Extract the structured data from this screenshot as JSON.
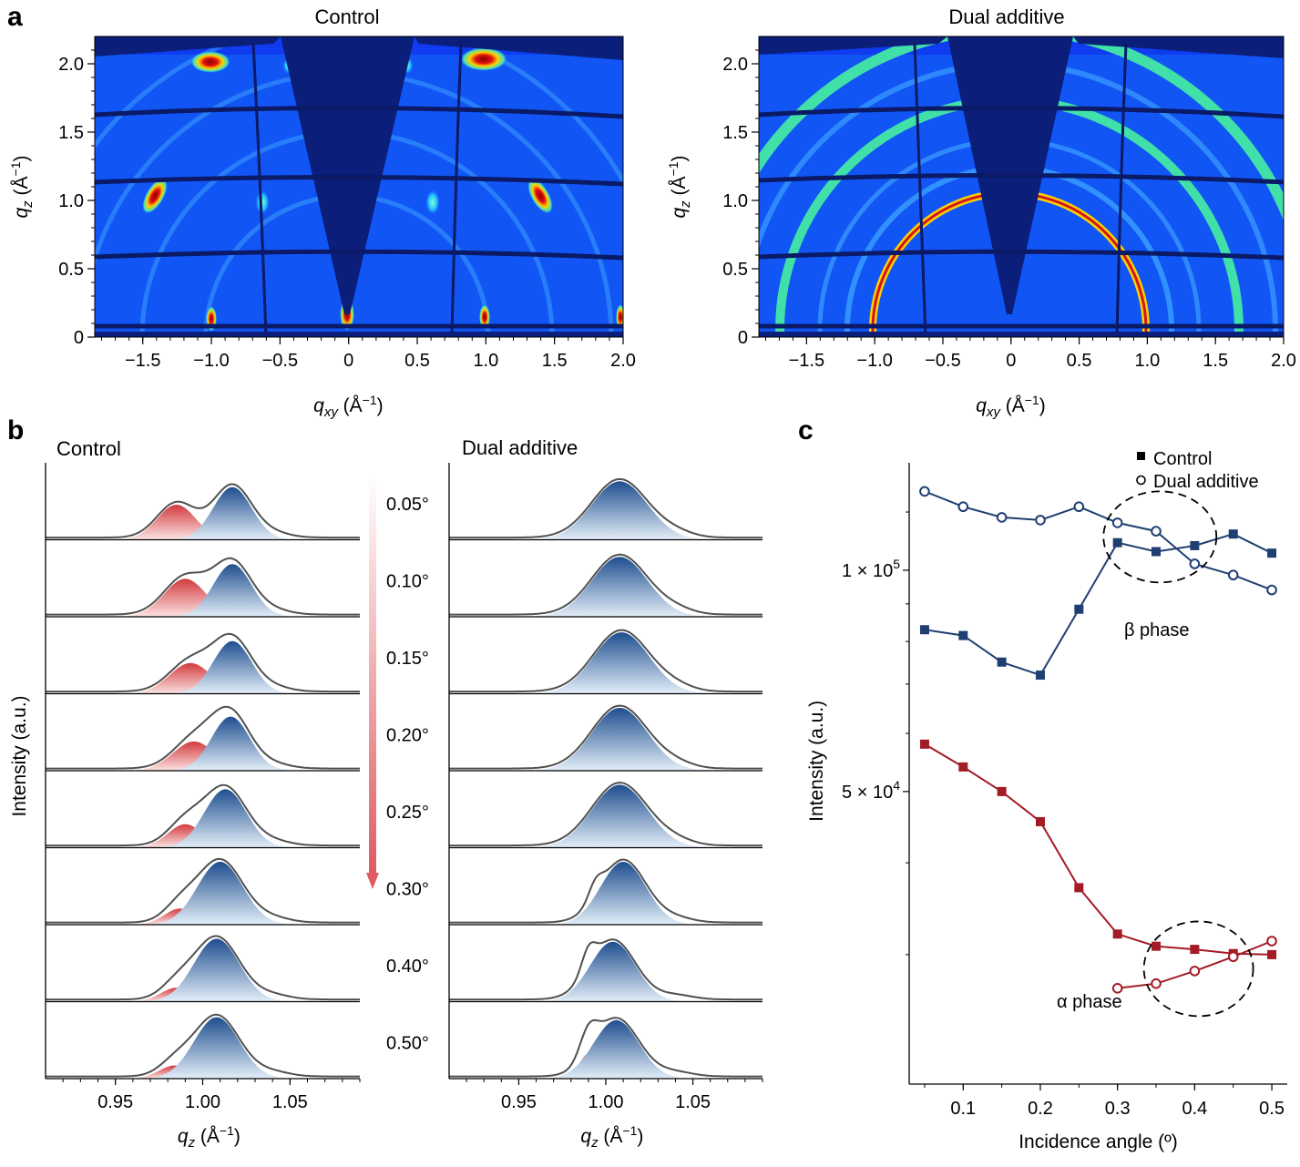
{
  "panels": {
    "a": "a",
    "b": "b",
    "c": "c"
  },
  "panel_a": {
    "maps": [
      {
        "title": "Control"
      },
      {
        "title": "Dual additive"
      }
    ],
    "xlabel": "q_xy (Å⁻¹)",
    "ylabel": "q_z (Å⁻¹)",
    "xticks": [
      "−1.5",
      "−1.0",
      "−0.5",
      "0",
      "0.5",
      "1.0",
      "1.5",
      "2.0"
    ],
    "yticks": [
      "0",
      "0.5",
      "1.0",
      "1.5",
      "2.0"
    ],
    "xlim": [
      -1.85,
      2.0
    ],
    "ylim": [
      0,
      2.2
    ]
  },
  "panel_b": {
    "left_title": "Control",
    "right_title": "Dual additive",
    "ylabel": "Intensity (a.u.)",
    "xlabel": "q_z (Å⁻¹)",
    "xticks": [
      "0.95",
      "1.00",
      "1.05"
    ],
    "xlim": [
      0.91,
      1.09
    ],
    "angles": [
      "0.05°",
      "0.10°",
      "0.15°",
      "0.20°",
      "0.25°",
      "0.30°",
      "0.40°",
      "0.50°"
    ]
  },
  "chart_data": {
    "type": "line",
    "x": [
      0.05,
      0.1,
      0.15,
      0.2,
      0.25,
      0.3,
      0.35,
      0.4,
      0.45,
      0.5
    ],
    "xlabel": "Incidence angle (º)",
    "ylabel": "Intensity (a.u.)",
    "xticks": [
      "0.1",
      "0.2",
      "0.3",
      "0.4",
      "0.5"
    ],
    "yticks": [
      "5 × 10⁴",
      "1 × 10⁵"
    ],
    "yscale": "log",
    "xlim": [
      0.03,
      0.52
    ],
    "ylim": [
      20000,
      140000
    ],
    "legend": {
      "position": "top-right",
      "entries": [
        "Control",
        "Dual additive"
      ]
    },
    "annotations": [
      "β phase",
      "α phase"
    ],
    "series": [
      {
        "name": "Control",
        "phase": "β",
        "marker": "square",
        "color": "#1f3f72",
        "values": [
          83000,
          81500,
          75000,
          72000,
          88500,
          109000,
          106000,
          108000,
          112000,
          105500
        ]
      },
      {
        "name": "Dual additive",
        "phase": "β",
        "marker": "circle",
        "color": "#1f3f72",
        "values": [
          128000,
          122000,
          118000,
          117000,
          122000,
          116000,
          113000,
          102000,
          98500,
          94000
        ]
      },
      {
        "name": "Control",
        "phase": "α",
        "marker": "square",
        "color": "#a31b25",
        "values": [
          58000,
          54000,
          50000,
          45500,
          37000,
          32000,
          30800,
          30500,
          30100,
          30000
        ]
      },
      {
        "name": "Dual additive",
        "phase": "α",
        "marker": "circle",
        "color": "#a31b25",
        "values": [
          null,
          null,
          null,
          null,
          null,
          27000,
          27400,
          28500,
          29800,
          31300
        ]
      }
    ]
  }
}
